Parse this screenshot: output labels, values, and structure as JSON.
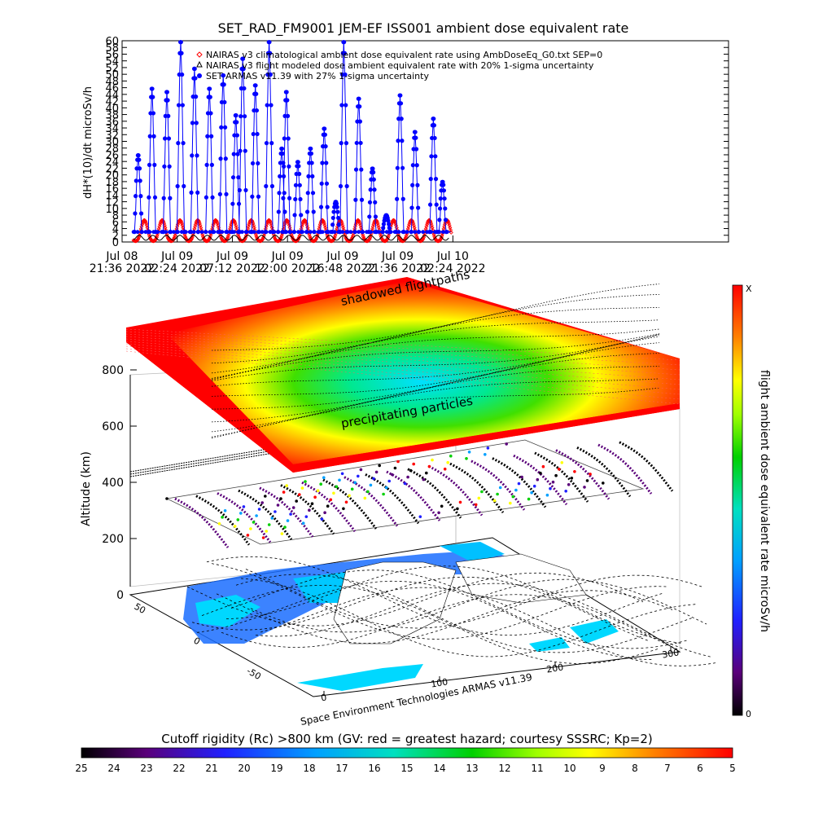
{
  "chart_data": [
    {
      "type": "line",
      "title": "SET_RAD_FM9001  JEM-EF ISS001 ambient dose equivalent rate",
      "ylabel": "dH*(10)/dt microSv/h",
      "xlabel": "",
      "ylim": [
        0,
        60
      ],
      "yticks": [
        0,
        2,
        4,
        6,
        8,
        10,
        12,
        14,
        16,
        18,
        20,
        22,
        24,
        26,
        28,
        30,
        32,
        34,
        36,
        38,
        40,
        42,
        44,
        46,
        48,
        50,
        52,
        54,
        56,
        58,
        60
      ],
      "xrange_hours": [
        0,
        52.8
      ],
      "xticks": [
        {
          "h": 0,
          "line1": "Jul 08",
          "line2": "21:36 2022"
        },
        {
          "h": 4.8,
          "line1": "Jul 09",
          "line2": "02:24 2022"
        },
        {
          "h": 9.6,
          "line1": "Jul 09",
          "line2": "07:12 2022"
        },
        {
          "h": 14.4,
          "line1": "Jul 09",
          "line2": "12:00 2022"
        },
        {
          "h": 19.2,
          "line1": "Jul 09",
          "line2": "16:48 2022"
        },
        {
          "h": 24.0,
          "line1": "Jul 09",
          "line2": "21:36 2022"
        },
        {
          "h": 28.8,
          "line1": "Jul 10",
          "line2": "02:24 2022"
        }
      ],
      "legend": [
        {
          "symbol": "diamond",
          "color": "#ff0000",
          "label": "NAIRAS v3 climatological ambient dose equivalent rate using AmbDoseEq_G0.txt SEP=0"
        },
        {
          "symbol": "triangle",
          "color": "#000000",
          "label": "NAIRAS v3 flight modeled dose ambient equivalent rate with 20% 1-sigma uncertainty"
        },
        {
          "symbol": "circle",
          "color": "#0000ff",
          "label": "SET ARMAS v11.39 with 27% 1-sigma uncertainty"
        }
      ],
      "series": [
        {
          "name": "SET ARMAS v11.39 with 27% 1-sigma uncertainty",
          "color": "#0000ff",
          "spikes": [
            {
              "h": 1.4,
              "peak": 26
            },
            {
              "h": 2.6,
              "peak": 46
            },
            {
              "h": 3.9,
              "peak": 45
            },
            {
              "h": 5.1,
              "peak": 60
            },
            {
              "h": 6.3,
              "peak": 52
            },
            {
              "h": 7.6,
              "peak": 46
            },
            {
              "h": 8.8,
              "peak": 50
            },
            {
              "h": 9.9,
              "peak": 38
            },
            {
              "h": 10.5,
              "peak": 55
            },
            {
              "h": 11.6,
              "peak": 47
            },
            {
              "h": 12.8,
              "peak": 60
            },
            {
              "h": 13.9,
              "peak": 28
            },
            {
              "h": 14.3,
              "peak": 45
            },
            {
              "h": 15.3,
              "peak": 24
            },
            {
              "h": 16.4,
              "peak": 28
            },
            {
              "h": 17.6,
              "peak": 34
            },
            {
              "h": 18.6,
              "peak": 12
            },
            {
              "h": 19.3,
              "peak": 60
            },
            {
              "h": 20.6,
              "peak": 43
            },
            {
              "h": 21.8,
              "peak": 22
            },
            {
              "h": 23.0,
              "peak": 8
            },
            {
              "h": 24.2,
              "peak": 44
            },
            {
              "h": 25.5,
              "peak": 33
            },
            {
              "h": 27.1,
              "peak": 37
            },
            {
              "h": 27.9,
              "peak": 18
            }
          ],
          "baseline": 3
        },
        {
          "name": "NAIRAS v3 climatological ambient dose equivalent rate using AmbDoseEq_G0.txt SEP=0",
          "color": "#ff0000",
          "min": 0.3,
          "max": 6.5,
          "period_hours": 1.55
        },
        {
          "name": "NAIRAS v3 flight modeled dose ambient equivalent rate with 20% 1-sigma uncertainty",
          "color": "#000000",
          "min": 0.5,
          "max": 2.0
        }
      ]
    },
    {
      "type": "heatmap",
      "zlabel": "Altitude (km)",
      "zticks": [
        "0",
        "200",
        "400",
        "600",
        "800"
      ],
      "lon_ticks": [
        "0",
        "100",
        "200",
        "300"
      ],
      "lat_ticks": [
        "-50",
        "0",
        "50"
      ],
      "layer_labels": [
        "shadowed flightpaths",
        "precipitating particles"
      ],
      "credit": "Space Environment Technologies ARMAS v11.39",
      "colorbar": {
        "label": "flight ambient dose equivalent rate microSv/h",
        "top_label": "X",
        "bottom_label": "0"
      },
      "cutoff_bar": {
        "title": "Cutoff rigidity (Rc) >800 km (GV: red = greatest hazard; courtesy SSSRC; Kp=2)",
        "labels": [
          "25",
          "24",
          "23",
          "22",
          "21",
          "20",
          "19",
          "18",
          "17",
          "16",
          "15",
          "14",
          "13",
          "12",
          "11",
          "10",
          "9",
          "8",
          "7",
          "6",
          "5"
        ]
      }
    }
  ],
  "colors": {
    "armas": "#0000ff",
    "nairas_clim": "#ff0000",
    "nairas_flight": "#000000",
    "ocean_land": "#00a0ff",
    "high_rc": "#ff0000"
  }
}
